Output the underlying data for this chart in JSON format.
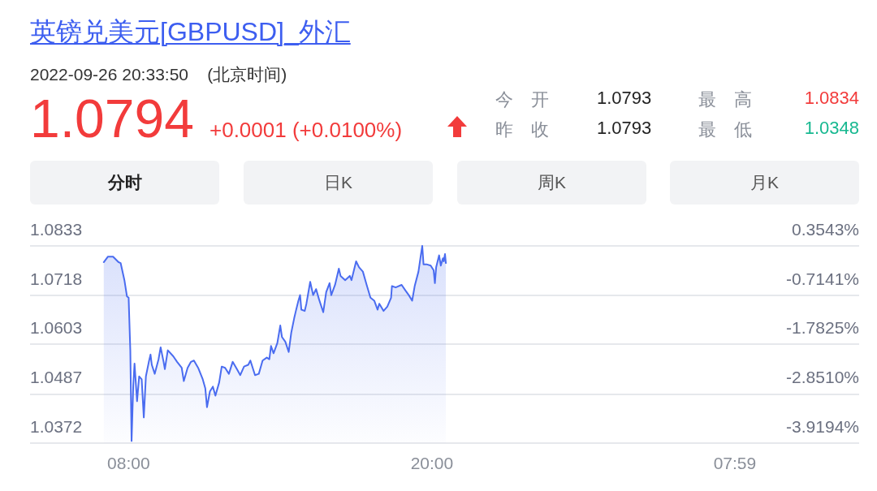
{
  "chart_data": {
    "type": "area",
    "title": "英镑兑美元[GBPUSD]_外汇",
    "subtitle": "2022-09-26 20:33:50    (北京时间)",
    "annotations": [
      "1.0794",
      "+0.0001 (+0.0100%)",
      "今　开",
      "1.0793",
      "昨　收",
      "1.0793",
      "最　高",
      "1.0834",
      "最　低",
      "1.0348",
      "分时",
      "日K",
      "周K",
      "月K"
    ],
    "x": [
      "2022-09-26T07:01",
      "2022-09-26T07:11",
      "2022-09-26T07:23",
      "2022-09-26T07:36",
      "2022-09-26T07:41",
      "2022-09-26T07:50",
      "2022-09-26T07:56",
      "2022-09-26T08:00",
      "2022-09-26T08:04",
      "2022-09-26T08:07",
      "2022-09-26T08:11",
      "2022-09-26T08:14",
      "2022-09-26T08:20",
      "2022-09-26T08:25",
      "2022-09-26T08:31",
      "2022-09-26T08:36",
      "2022-09-26T08:41",
      "2022-09-26T08:48",
      "2022-09-26T08:52",
      "2022-09-26T08:55",
      "2022-09-26T09:02",
      "2022-09-26T09:11",
      "2022-09-26T09:16",
      "2022-09-26T09:23",
      "2022-09-26T09:26",
      "2022-09-26T09:33",
      "2022-09-26T09:46",
      "2022-09-26T09:55",
      "2022-09-26T10:06",
      "2022-09-26T10:11",
      "2022-09-26T10:20",
      "2022-09-26T10:28",
      "2022-09-26T10:35",
      "2022-09-26T10:45",
      "2022-09-26T10:56",
      "2022-09-26T11:02",
      "2022-09-26T11:06",
      "2022-09-26T11:13",
      "2022-09-26T11:20",
      "2022-09-26T11:26",
      "2022-09-26T11:35",
      "2022-09-26T11:41",
      "2022-09-26T11:49",
      "2022-09-26T11:58",
      "2022-09-26T12:07",
      "2022-09-26T12:17",
      "2022-09-26T12:25",
      "2022-09-26T12:34",
      "2022-09-26T12:44",
      "2022-09-26T12:49",
      "2022-09-26T13:00",
      "2022-09-26T13:09",
      "2022-09-26T13:18",
      "2022-09-26T13:28",
      "2022-09-26T13:34",
      "2022-09-26T13:38",
      "2022-09-26T13:44",
      "2022-09-26T13:53",
      "2022-09-26T14:00",
      "2022-09-26T14:04",
      "2022-09-26T14:12",
      "2022-09-26T14:20",
      "2022-09-26T14:26",
      "2022-09-26T14:33",
      "2022-09-26T14:37",
      "2022-09-26T14:43",
      "2022-09-26T14:47",
      "2022-09-26T14:50",
      "2022-09-26T14:58",
      "2022-09-26T15:02",
      "2022-09-26T15:11",
      "2022-09-26T15:18",
      "2022-09-26T15:25",
      "2022-09-26T15:32",
      "2022-09-26T15:42",
      "2022-09-26T15:49",
      "2022-09-26T15:57",
      "2022-09-26T16:01",
      "2022-09-26T16:10",
      "2022-09-26T16:19",
      "2022-09-26T16:23",
      "2022-09-26T16:34",
      "2022-09-26T16:45",
      "2022-09-26T16:49",
      "2022-09-26T17:00",
      "2022-09-26T17:07",
      "2022-09-26T17:16",
      "2022-09-26T17:25",
      "2022-09-26T17:34",
      "2022-09-26T17:43",
      "2022-09-26T17:51",
      "2022-09-26T17:55",
      "2022-09-26T18:05",
      "2022-09-26T18:14",
      "2022-09-26T18:23",
      "2022-09-26T18:25",
      "2022-09-26T18:34",
      "2022-09-26T18:48",
      "2022-09-26T18:57",
      "2022-09-26T19:05",
      "2022-09-26T19:13",
      "2022-09-26T19:19",
      "2022-09-26T19:28",
      "2022-09-26T19:33",
      "2022-09-26T19:37",
      "2022-09-26T19:40",
      "2022-09-26T19:47",
      "2022-09-26T19:57",
      "2022-09-26T20:04",
      "2022-09-26T20:07",
      "2022-09-26T20:10",
      "2022-09-26T20:17",
      "2022-09-26T20:21",
      "2022-09-26T20:26",
      "2022-09-26T20:28",
      "2022-09-26T20:31",
      "2022-09-26T20:33"
    ],
    "series": [
      {
        "color": "#4a6cf0",
        "values": [
          1.0795,
          1.0808,
          1.0808,
          1.0795,
          1.0793,
          1.0753,
          1.0715,
          1.0712,
          1.0589,
          1.0377,
          1.0507,
          1.0558,
          1.047,
          1.0528,
          1.0521,
          1.0432,
          1.0528,
          1.0562,
          1.0579,
          1.0555,
          1.0534,
          1.0568,
          1.0596,
          1.0562,
          1.0545,
          1.0589,
          1.0575,
          1.0562,
          1.0548,
          1.0517,
          1.0548,
          1.0562,
          1.0565,
          1.0548,
          1.0521,
          1.05,
          1.0456,
          1.0493,
          1.0504,
          1.0483,
          1.0514,
          1.0551,
          1.0548,
          1.0534,
          1.0562,
          1.0545,
          1.0531,
          1.0551,
          1.0555,
          1.0565,
          1.0531,
          1.0534,
          1.0565,
          1.0572,
          1.0568,
          1.0599,
          1.0582,
          1.0606,
          1.0647,
          1.062,
          1.0609,
          1.0585,
          1.063,
          1.0664,
          1.0681,
          1.0705,
          1.0718,
          1.0684,
          1.0681,
          1.0698,
          1.0749,
          1.0718,
          1.0732,
          1.0708,
          1.0678,
          1.0725,
          1.0746,
          1.0718,
          1.0742,
          1.078,
          1.0763,
          1.0753,
          1.0763,
          1.0753,
          1.0797,
          1.0783,
          1.0773,
          1.0742,
          1.0712,
          1.0705,
          1.0684,
          1.0698,
          1.0681,
          1.0691,
          1.0712,
          1.0739,
          1.0736,
          1.0742,
          1.0729,
          1.0718,
          1.0705,
          1.0739,
          1.0773,
          1.0807,
          1.0833,
          1.079,
          1.079,
          1.0787,
          1.0776,
          1.0746,
          1.0783,
          1.0811,
          1.0787,
          1.0804,
          1.0797,
          1.0814,
          1.0793
        ]
      }
    ],
    "xlim": [
      "2022-09-26T04:06",
      "2022-09-27T12:54"
    ],
    "xticks": [
      {
        "value": "2022-09-26T08:00",
        "label": "08:00"
      },
      {
        "value": "2022-09-26T20:00",
        "label": "20:00"
      },
      {
        "value": "2022-09-27T07:59",
        "label": "07:59"
      }
    ],
    "ylim": [
      1.0372,
      1.0833
    ],
    "yticks": [
      1.0372,
      1.0487,
      1.0603,
      1.0718,
      1.0833
    ],
    "y2lim": [
      -3.9194,
      0.3543
    ],
    "y2ticks": [
      {
        "value": -3.9194,
        "label": "-3.9194%"
      },
      {
        "value": -2.851,
        "label": "-2.8510%"
      },
      {
        "value": -1.7825,
        "label": "-1.7825%"
      },
      {
        "value": -0.7141,
        "label": "-0.7141%"
      },
      {
        "value": 0.3543,
        "label": "0.3543%"
      }
    ],
    "grid": "y",
    "marker": "none",
    "line_style": "solid"
  }
}
